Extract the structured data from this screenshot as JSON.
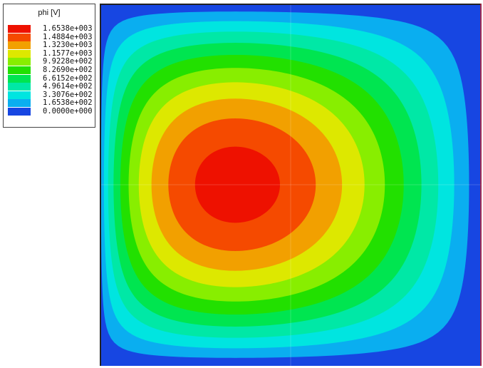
{
  "chart_data": {
    "type": "heatmap",
    "title": "",
    "quantity": "phi",
    "unit": "[V]",
    "legend_position": "top-left",
    "levels": [
      {
        "label": "1.6538e+003",
        "value": 1653.8,
        "color": "#ee1100"
      },
      {
        "label": "1.4884e+003",
        "value": 1488.4,
        "color": "#f54a00"
      },
      {
        "label": "1.3230e+003",
        "value": 1323.0,
        "color": "#f2a000"
      },
      {
        "label": "1.1577e+003",
        "value": 1157.7,
        "color": "#dde800"
      },
      {
        "label": "9.9228e+002",
        "value": 992.28,
        "color": "#88ee00"
      },
      {
        "label": "8.2690e+002",
        "value": 826.9,
        "color": "#22e000"
      },
      {
        "label": "6.6152e+002",
        "value": 661.52,
        "color": "#00e550"
      },
      {
        "label": "4.9614e+002",
        "value": 496.14,
        "color": "#00e8a6"
      },
      {
        "label": "3.3076e+002",
        "value": 330.76,
        "color": "#00e5e0"
      },
      {
        "label": "1.6538e+002",
        "value": 165.38,
        "color": "#0aaef0"
      },
      {
        "label": "0.0000e+000",
        "value": 0.0,
        "color": "#1746e2"
      }
    ],
    "field": {
      "peak_value": 1736.5,
      "peak_location": [
        0.355,
        0.5
      ],
      "boundary_value": 0.0,
      "domain": [
        [
          0,
          1
        ],
        [
          0,
          1
        ]
      ]
    }
  }
}
